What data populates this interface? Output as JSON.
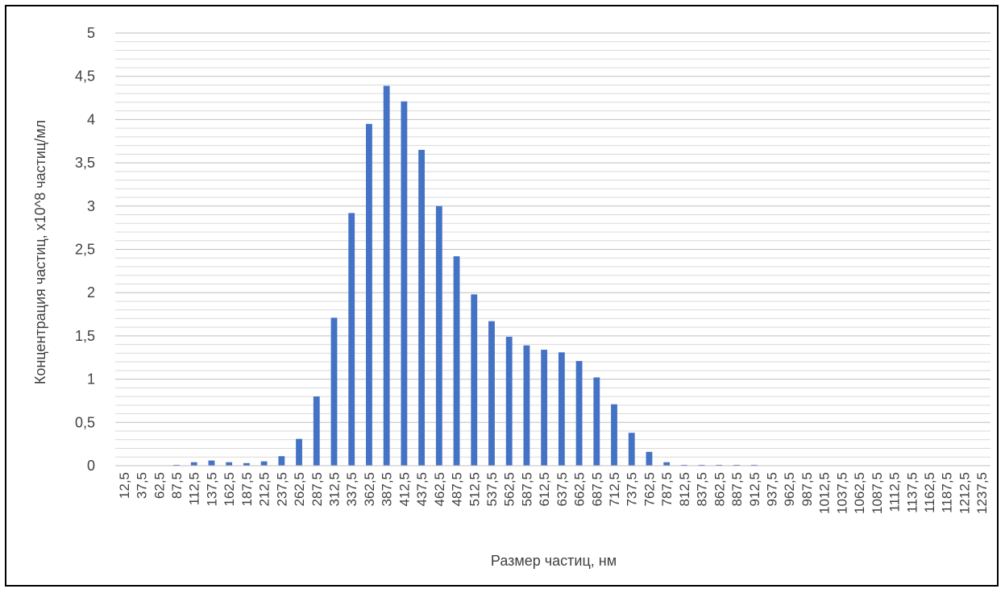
{
  "chart_data": {
    "type": "bar",
    "title": "",
    "xlabel": "Размер частиц, нм",
    "ylabel": "Концентрация частиц, x10^8 частиц/мл",
    "categories": [
      "12,5",
      "37,5",
      "62,5",
      "87,5",
      "112,5",
      "137,5",
      "162,5",
      "187,5",
      "212,5",
      "237,5",
      "262,5",
      "287,5",
      "312,5",
      "337,5",
      "362,5",
      "387,5",
      "412,5",
      "437,5",
      "462,5",
      "487,5",
      "512,5",
      "537,5",
      "562,5",
      "587,5",
      "612,5",
      "637,5",
      "662,5",
      "687,5",
      "712,5",
      "737,5",
      "762,5",
      "787,5",
      "812,5",
      "837,5",
      "862,5",
      "887,5",
      "912,5",
      "937,5",
      "962,5",
      "987,5",
      "1012,5",
      "1037,5",
      "1062,5",
      "1087,5",
      "1112,5",
      "1137,5",
      "1162,5",
      "1187,5",
      "1212,5",
      "1237,5"
    ],
    "values": [
      0,
      0,
      0,
      0.01,
      0.04,
      0.06,
      0.04,
      0.03,
      0.05,
      0.11,
      0.31,
      0.8,
      1.71,
      2.92,
      3.95,
      4.39,
      4.21,
      3.65,
      3.0,
      2.42,
      1.98,
      1.67,
      1.49,
      1.39,
      1.34,
      1.31,
      1.21,
      1.02,
      0.71,
      0.38,
      0.16,
      0.04,
      0.01,
      0.01,
      0.01,
      0.01,
      0.01,
      0,
      0,
      0,
      0,
      0,
      0,
      0,
      0,
      0,
      0,
      0,
      0,
      0
    ],
    "ylim": [
      0,
      5
    ],
    "y_ticks": [
      "0",
      "0,5",
      "1",
      "1,5",
      "2",
      "2,5",
      "3",
      "3,5",
      "4",
      "4,5",
      "5"
    ],
    "y_tick_values": [
      0,
      0.5,
      1,
      1.5,
      2,
      2.5,
      3,
      3.5,
      4,
      4.5,
      5
    ],
    "minor_grid_step": 0.1,
    "grid": true,
    "legend": "none",
    "bar_color": "#4472C4",
    "major_grid_color": "#BFBFBF",
    "minor_grid_color": "#D9D9D9"
  }
}
